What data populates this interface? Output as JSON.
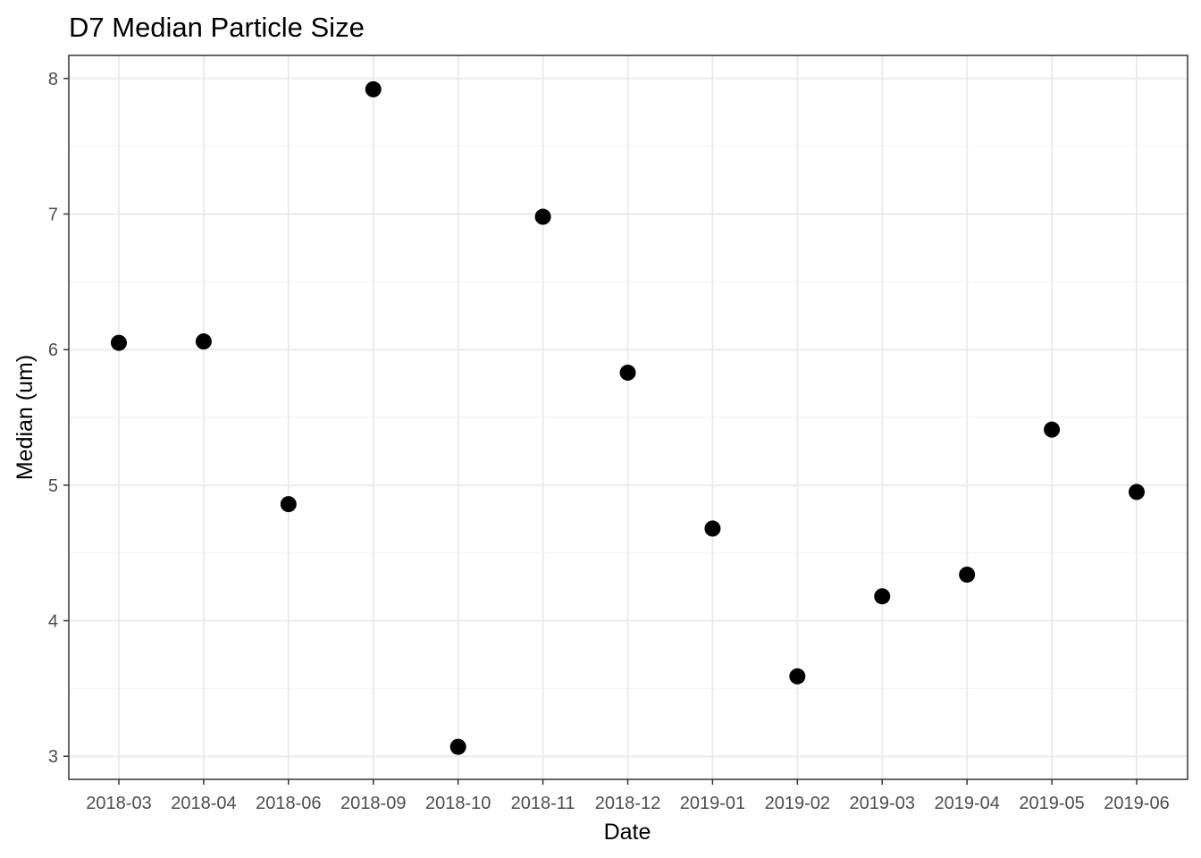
{
  "chart_data": {
    "type": "scatter",
    "title": "D7 Median Particle Size",
    "xlabel": "Date",
    "ylabel": "Median (um)",
    "categories": [
      "2018-03",
      "2018-04",
      "2018-06",
      "2018-09",
      "2018-10",
      "2018-11",
      "2018-12",
      "2019-01",
      "2019-02",
      "2019-03",
      "2019-04",
      "2019-05",
      "2019-06"
    ],
    "values": [
      6.05,
      6.06,
      4.86,
      7.92,
      3.07,
      6.98,
      5.83,
      4.68,
      3.59,
      4.18,
      4.34,
      5.41,
      4.95
    ],
    "ylim": [
      2.83,
      8.17
    ],
    "yticks": [
      3,
      4,
      5,
      6,
      7,
      8
    ],
    "grid": true,
    "point_color": "#000000",
    "theme": "bw"
  }
}
